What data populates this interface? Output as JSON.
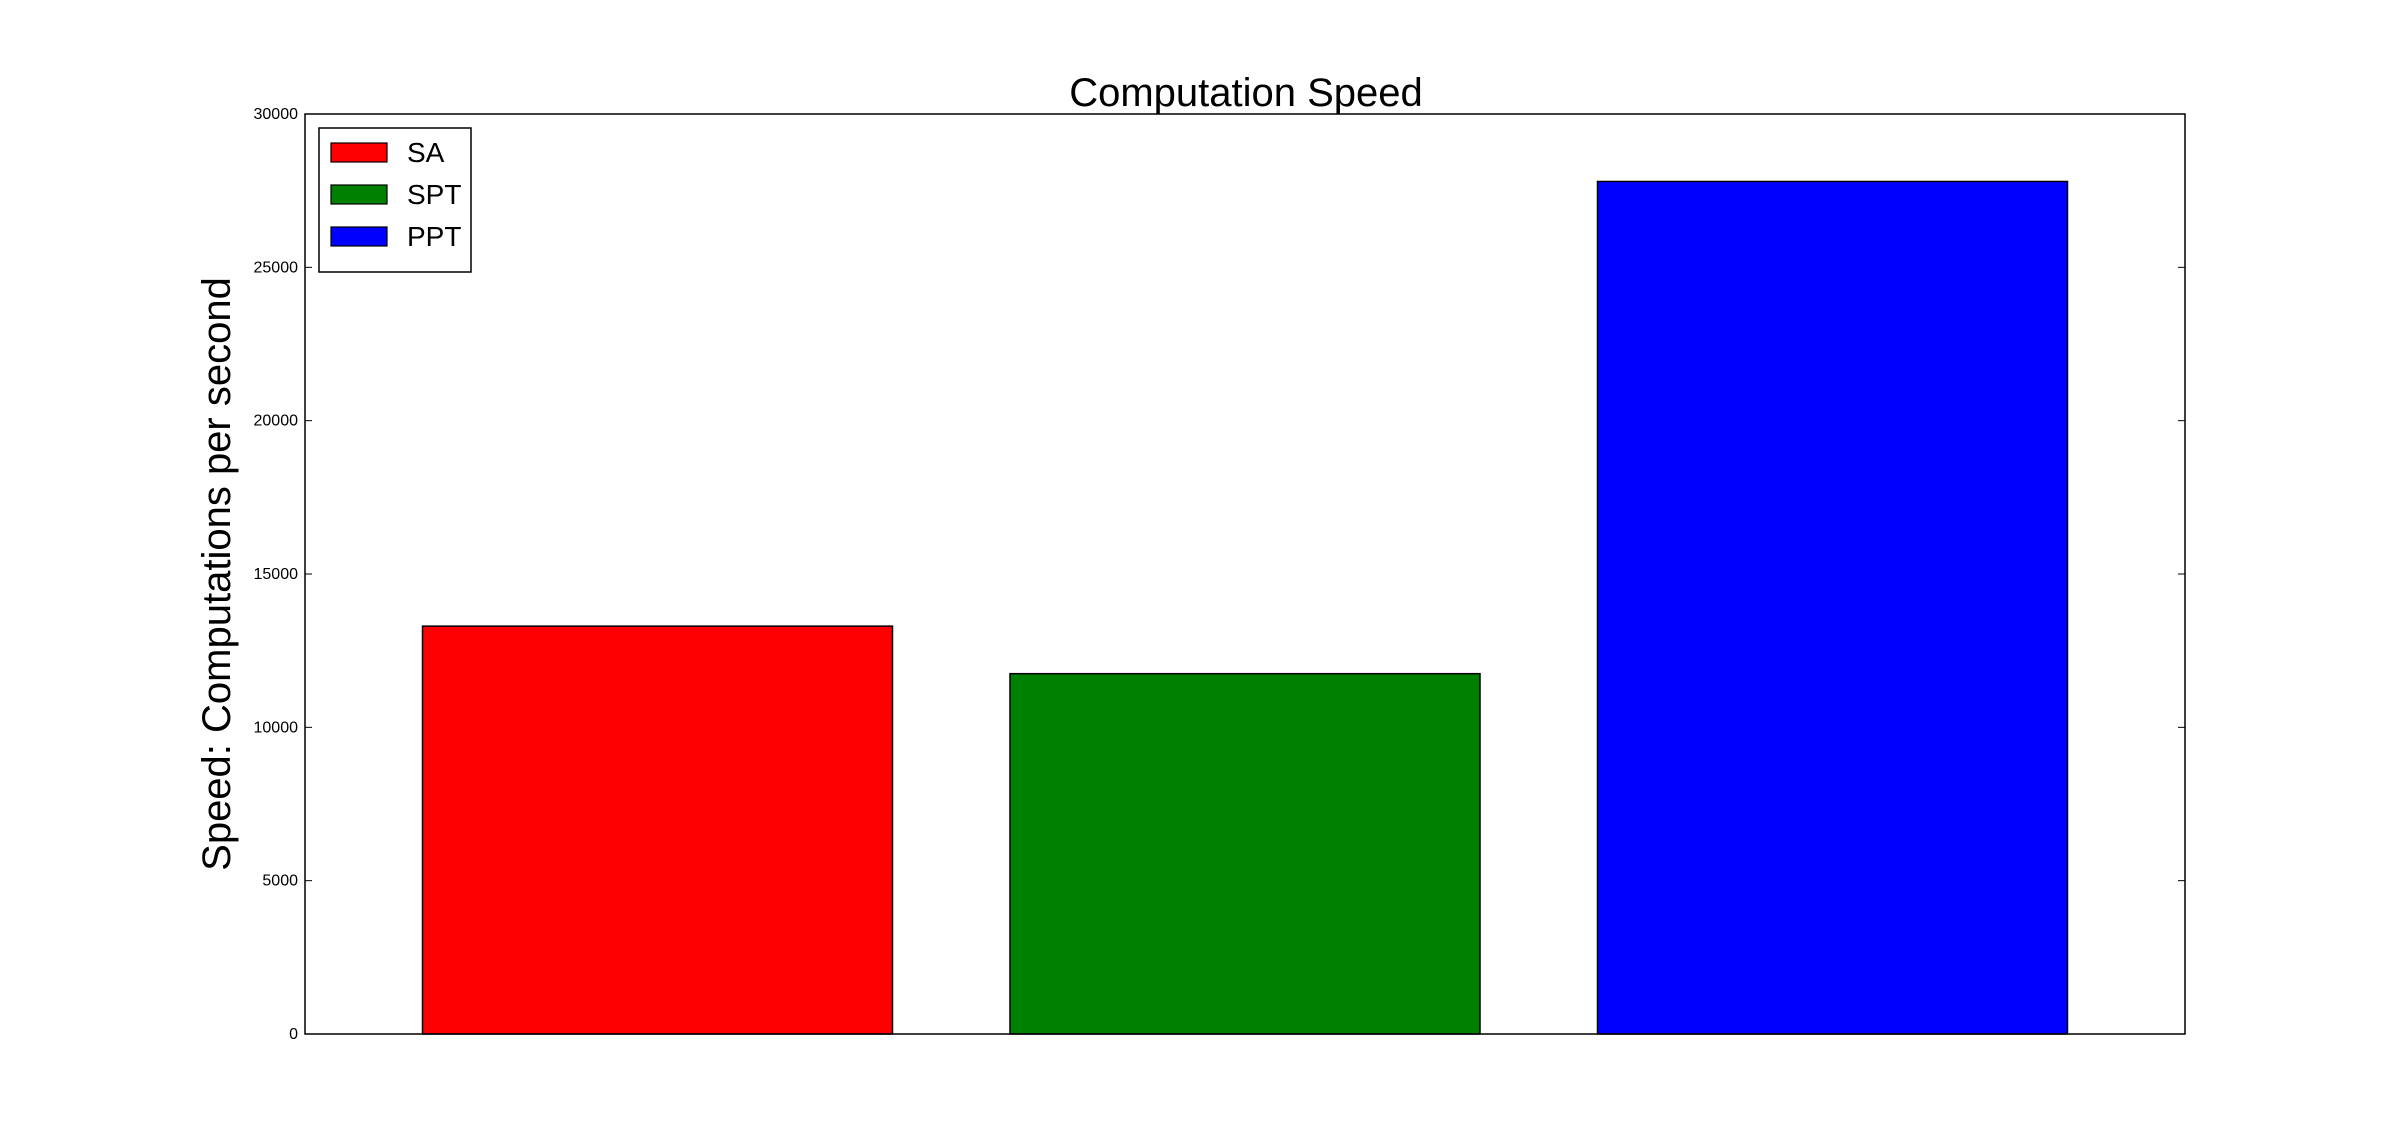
{
  "chart_data": {
    "type": "bar",
    "title": "Computation Speed",
    "xlabel": "",
    "ylabel": "Speed: Computations per second",
    "ylim": [
      0,
      30000
    ],
    "yticks": [
      0,
      5000,
      10000,
      15000,
      20000,
      25000,
      30000
    ],
    "grid": false,
    "legend_position": "top-left",
    "series": [
      {
        "name": "SA",
        "value": 13300,
        "color": "#ff0000"
      },
      {
        "name": "SPT",
        "value": 11750,
        "color": "#008000"
      },
      {
        "name": "PPT",
        "value": 27800,
        "color": "#0000ff"
      }
    ]
  }
}
